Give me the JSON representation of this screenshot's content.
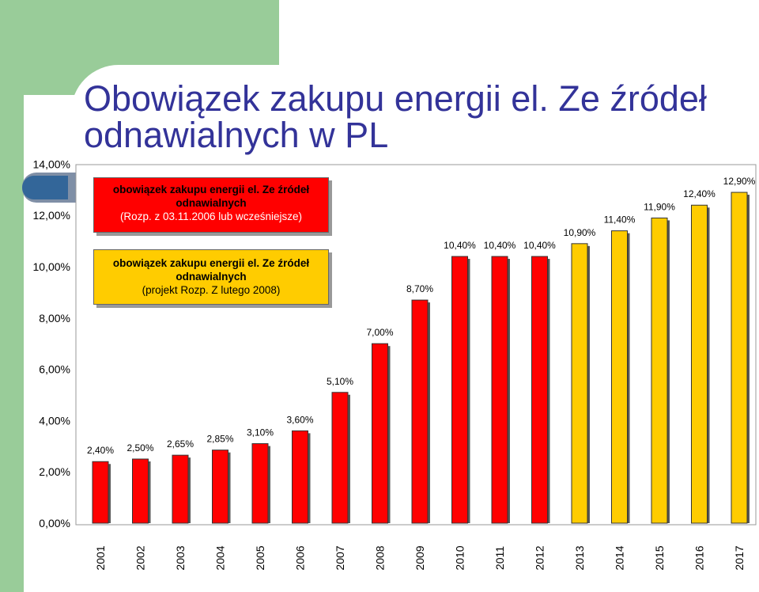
{
  "title": "Obowiązek zakupu energii el. Ze źródeł odnawialnych w PL",
  "legend": {
    "current": {
      "line1": "obowiązek zakupu energii el. Ze źródeł",
      "line2": "odnawialnych",
      "line3": "(Rozp. z 03.11.2006 lub wcześniejsze)",
      "color": "#ff0000"
    },
    "proposed": {
      "line1": "obowiązek zakupu energii el. Ze źródeł",
      "line2": "odnawialnych",
      "line3": "(projekt Rozp. Z lutego 2008)",
      "color": "#ffcc00"
    }
  },
  "chart_data": {
    "type": "bar",
    "title": "Obowiązek zakupu energii el. Ze źródeł odnawialnych w PL",
    "xlabel": "",
    "ylabel": "",
    "ylim": [
      0,
      14
    ],
    "y_ticks": [
      "0,00%",
      "2,00%",
      "4,00%",
      "6,00%",
      "8,00%",
      "10,00%",
      "12,00%",
      "14,00%"
    ],
    "grid": false,
    "categories": [
      "2001",
      "2002",
      "2003",
      "2004",
      "2005",
      "2006",
      "2007",
      "2008",
      "2009",
      "2010",
      "2011",
      "2012",
      "2013",
      "2014",
      "2015",
      "2016",
      "2017"
    ],
    "values": [
      2.4,
      2.5,
      2.65,
      2.85,
      3.1,
      3.6,
      5.1,
      7.0,
      8.7,
      10.4,
      10.4,
      10.4,
      10.9,
      11.4,
      11.9,
      12.4,
      12.9
    ],
    "labels": [
      "2,40%",
      "2,50%",
      "2,65%",
      "2,85%",
      "3,10%",
      "3,60%",
      "5,10%",
      "7,00%",
      "8,70%",
      "10,40%",
      "10,40%",
      "10,40%",
      "10,90%",
      "11,40%",
      "11,90%",
      "12,40%",
      "12,90%"
    ],
    "series_by_bar": [
      "current",
      "current",
      "current",
      "current",
      "current",
      "current",
      "current",
      "current",
      "current",
      "current",
      "current",
      "current",
      "proposed",
      "proposed",
      "proposed",
      "proposed",
      "proposed"
    ]
  }
}
